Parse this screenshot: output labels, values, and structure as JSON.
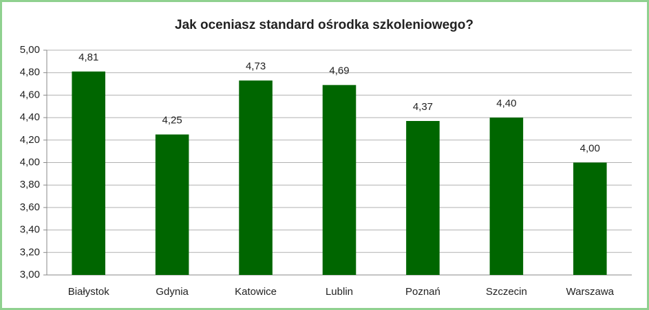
{
  "chart_data": {
    "type": "bar",
    "title": "Jak oceniasz standard ośrodka szkoleniowego?",
    "categories": [
      "Białystok",
      "Gdynia",
      "Katowice",
      "Lublin",
      "Poznań",
      "Szczecin",
      "Warszawa"
    ],
    "values": [
      4.81,
      4.25,
      4.73,
      4.69,
      4.37,
      4.4,
      4.0
    ],
    "value_labels": [
      "4,81",
      "4,25",
      "4,73",
      "4,69",
      "4,37",
      "4,40",
      "4,00"
    ],
    "color": "#006600",
    "ylim": [
      3,
      5
    ],
    "yticks": [
      {
        "value": 3,
        "label": "3,00"
      },
      {
        "value": 3.2,
        "label": "3,20"
      },
      {
        "value": 3.4,
        "label": "3,40"
      },
      {
        "value": 3.6,
        "label": "3,60"
      },
      {
        "value": 3.8,
        "label": "3,80"
      },
      {
        "value": 4,
        "label": "4,00"
      },
      {
        "value": 4.2,
        "label": "4,20"
      },
      {
        "value": 4.4,
        "label": "4,40"
      },
      {
        "value": 4.6,
        "label": "4,60"
      },
      {
        "value": 4.8,
        "label": "4,80"
      },
      {
        "value": 5,
        "label": "5,00"
      }
    ],
    "grid": true
  }
}
